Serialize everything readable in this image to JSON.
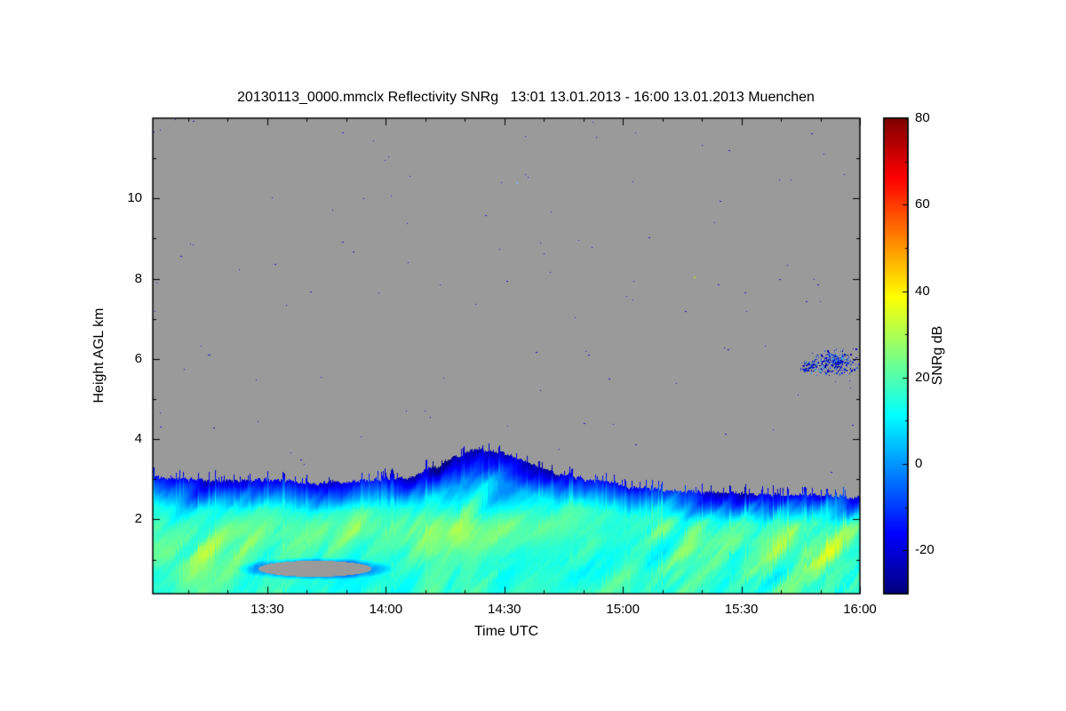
{
  "title": "20130113_0000.mmclx Reflectivity SNRg   13:01 13.01.2013 - 16:00 13.01.2013 Muenchen",
  "axes": {
    "x_label": "Time UTC",
    "y_label": "Height AGL km",
    "x_ticks": [
      {
        "label": "13:30",
        "hour": 13.5
      },
      {
        "label": "14:00",
        "hour": 14.0
      },
      {
        "label": "14:30",
        "hour": 14.5
      },
      {
        "label": "15:00",
        "hour": 15.0
      },
      {
        "label": "15:30",
        "hour": 15.5
      },
      {
        "label": "16:00",
        "hour": 16.0
      }
    ],
    "y_ticks": [
      {
        "label": "10",
        "km": 10
      },
      {
        "label": "8",
        "km": 8
      },
      {
        "label": "6",
        "km": 6
      },
      {
        "label": "4",
        "km": 4
      },
      {
        "label": "2",
        "km": 2
      }
    ]
  },
  "colorbar": {
    "label": "SNRg dB",
    "ticks": [
      {
        "label": "80",
        "value": 80
      },
      {
        "label": "60",
        "value": 60
      },
      {
        "label": "40",
        "value": 40
      },
      {
        "label": "20",
        "value": 20
      },
      {
        "label": "0",
        "value": 0
      },
      {
        "label": "-20",
        "value": -20
      }
    ]
  },
  "chart_data": {
    "type": "heatmap",
    "title": "20130113_0000.mmclx Reflectivity SNRg",
    "time_span_label": "13:01 13.01.2013 - 16:00 13.01.2013",
    "site": "Muenchen",
    "xlabel": "Time UTC",
    "ylabel": "Height AGL km",
    "value_label": "SNRg dB",
    "colormap": "jet",
    "x_range_hours": [
      13.0167,
      16.0
    ],
    "y_range_km": [
      0.15,
      12.0
    ],
    "value_range_db": [
      -30,
      80
    ],
    "no_signal_color": "#9a9a9a",
    "echo_top_profile": [
      {
        "t": 13.02,
        "top": 3.05
      },
      {
        "t": 13.15,
        "top": 3.0
      },
      {
        "t": 13.3,
        "top": 2.95
      },
      {
        "t": 13.5,
        "top": 3.0
      },
      {
        "t": 13.7,
        "top": 2.9
      },
      {
        "t": 13.85,
        "top": 2.95
      },
      {
        "t": 14.0,
        "top": 3.0
      },
      {
        "t": 14.1,
        "top": 3.05
      },
      {
        "t": 14.2,
        "top": 3.3
      },
      {
        "t": 14.3,
        "top": 3.55
      },
      {
        "t": 14.38,
        "top": 3.72
      },
      {
        "t": 14.45,
        "top": 3.7
      },
      {
        "t": 14.55,
        "top": 3.55
      },
      {
        "t": 14.65,
        "top": 3.3
      },
      {
        "t": 14.75,
        "top": 3.1
      },
      {
        "t": 14.9,
        "top": 2.95
      },
      {
        "t": 15.05,
        "top": 2.8
      },
      {
        "t": 15.2,
        "top": 2.72
      },
      {
        "t": 15.4,
        "top": 2.68
      },
      {
        "t": 15.6,
        "top": 2.62
      },
      {
        "t": 15.8,
        "top": 2.62
      },
      {
        "t": 16.0,
        "top": 2.55
      }
    ],
    "features": {
      "description": "Continuous low-level cloud/precipitation layer below ~3 km with echo top bump to ~3.7 km near 14:30, embedded clear (gray) lens near 13:40 at 0.8 km, detached speckled cloud near 15:50 at 5.9 km, sparse receiver-noise speckles in no-signal region.",
      "streak_boosts": [
        {
          "t": 13.22,
          "h": 0.9,
          "st": 0.22,
          "sh": 0.55,
          "amp": 9
        },
        {
          "t": 13.6,
          "h": 1.6,
          "st": 0.3,
          "sh": 0.5,
          "amp": 4
        },
        {
          "t": 14.0,
          "h": 1.85,
          "st": 0.45,
          "sh": 0.5,
          "amp": 5
        },
        {
          "t": 14.55,
          "h": 1.7,
          "st": 0.3,
          "sh": 0.6,
          "amp": 5
        },
        {
          "t": 15.45,
          "h": 1.5,
          "st": 0.3,
          "sh": 0.8,
          "amp": 6
        },
        {
          "t": 15.85,
          "h": 1.1,
          "st": 0.18,
          "sh": 0.6,
          "amp": 6
        },
        {
          "t": 14.35,
          "h": 3.3,
          "st": 0.28,
          "sh": 0.45,
          "amp": -7
        }
      ],
      "gray_lens": {
        "t": 13.7,
        "h": 0.77,
        "rt": 0.24,
        "rh": 0.2
      },
      "detached_cloud": {
        "blobs": [
          {
            "t": 15.89,
            "h": 5.92,
            "st": 0.045,
            "sh": 0.14,
            "n": 320
          },
          {
            "t": 15.78,
            "h": 5.82,
            "st": 0.02,
            "sh": 0.07,
            "n": 60
          }
        ],
        "colors": [
          "#0000b4",
          "#1a30cc",
          "#2a50dd",
          "#0000a0",
          "#30a0e0"
        ]
      },
      "noise_speckles": {
        "count": 110,
        "color": "#2020c0"
      },
      "bright_specks": [
        {
          "t": 15.3,
          "h": 8.05,
          "color": "#c8d23c"
        },
        {
          "t": 14.55,
          "h": 10.4,
          "color": "#88b0e8"
        }
      ]
    }
  }
}
